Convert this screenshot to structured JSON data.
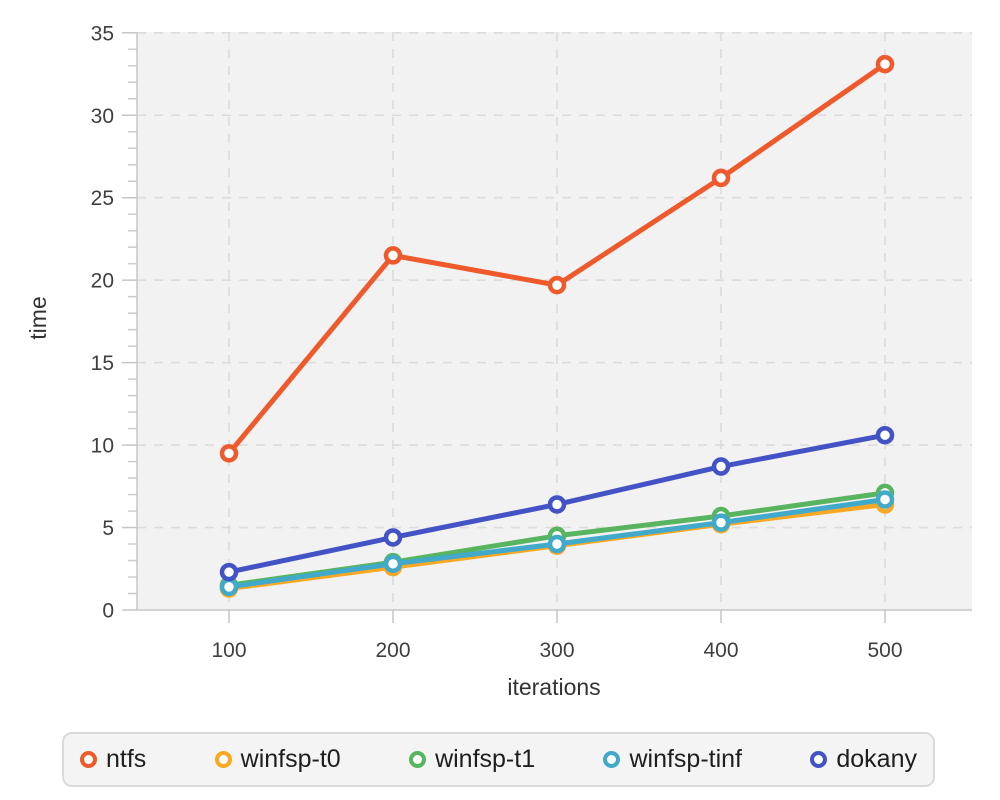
{
  "chart_data": {
    "type": "line",
    "title": "",
    "xlabel": "iterations",
    "ylabel": "time",
    "x": [
      100,
      200,
      300,
      400,
      500
    ],
    "x_ticks": [
      100,
      200,
      300,
      400,
      500
    ],
    "y_major_ticks": [
      0,
      5,
      10,
      15,
      20,
      25,
      30,
      35
    ],
    "y_minor_step": 1,
    "xlim": [
      44,
      553
    ],
    "ylim": [
      0,
      35
    ],
    "grid": "dashed",
    "legend_position": "bottom",
    "series": [
      {
        "name": "ntfs",
        "color": "#ee5a2c",
        "values": [
          9.5,
          21.5,
          19.7,
          26.2,
          33.1
        ]
      },
      {
        "name": "winfsp-t0",
        "color": "#f9a823",
        "values": [
          1.3,
          2.6,
          3.9,
          5.2,
          6.4
        ]
      },
      {
        "name": "winfsp-t1",
        "color": "#59b45f",
        "values": [
          1.5,
          2.9,
          4.5,
          5.7,
          7.1
        ]
      },
      {
        "name": "winfsp-tinf",
        "color": "#41a9c9",
        "values": [
          1.4,
          2.8,
          4.0,
          5.3,
          6.7
        ]
      },
      {
        "name": "dokany",
        "color": "#4353c5",
        "values": [
          2.3,
          4.4,
          6.4,
          8.7,
          10.6
        ]
      }
    ],
    "colors": {
      "plot_background": "#f2f2f2",
      "grid_line": "#dcdcdc",
      "axis_line": "#c6c6c6",
      "minor_tick": "#cccccc",
      "tick_text": "#3f3f3f",
      "axis_title_text": "#333333",
      "marker_fill": "#ffffff"
    }
  }
}
